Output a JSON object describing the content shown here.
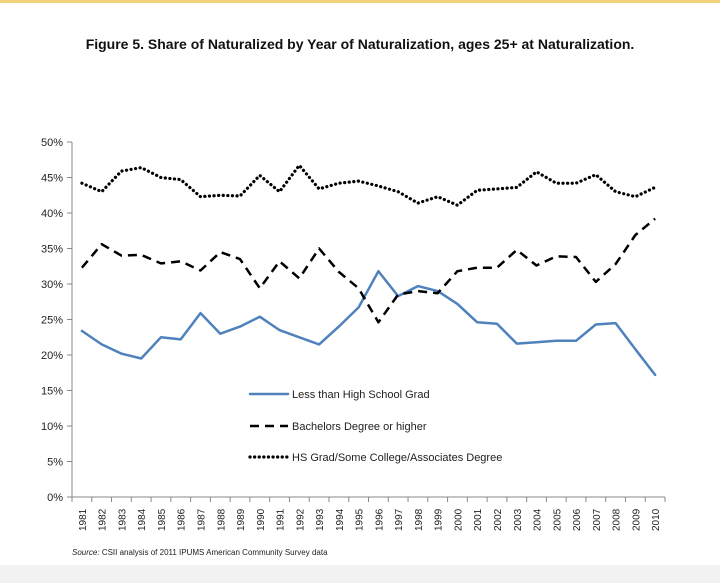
{
  "colors": {
    "less_hs": "#4f81bd",
    "bachelors": "#000000",
    "hs_grad": "#000000",
    "axis": "#888888"
  },
  "chart_data": {
    "type": "line",
    "title": "Figure 5. Share of Naturalized by Year of Naturalization, ages 25+ at Naturalization.",
    "xlabel": "",
    "ylabel": "",
    "ylim": [
      0,
      50
    ],
    "y_ticks": [
      "0%",
      "5%",
      "10%",
      "15%",
      "20%",
      "25%",
      "30%",
      "35%",
      "40%",
      "45%",
      "50%"
    ],
    "grid": false,
    "legend_placement": "center",
    "categories": [
      "1981",
      "1982",
      "1983",
      "1984",
      "1985",
      "1986",
      "1987",
      "1988",
      "1989",
      "1990",
      "1991",
      "1992",
      "1993",
      "1994",
      "1995",
      "1996",
      "1997",
      "1998",
      "1999",
      "2000",
      "2001",
      "2002",
      "2003",
      "2004",
      "2005",
      "2006",
      "2007",
      "2008",
      "2009",
      "2010"
    ],
    "series": [
      {
        "name": "Less than High School Grad",
        "style": "solid",
        "values": [
          23.4,
          21.5,
          20.2,
          19.5,
          22.5,
          22.2,
          25.9,
          23.0,
          24.0,
          25.4,
          23.5,
          22.5,
          21.5,
          24.0,
          26.7,
          31.8,
          28.3,
          29.7,
          29.0,
          27.2,
          24.6,
          24.4,
          21.6,
          21.8,
          22.0,
          22.0,
          24.3,
          24.5,
          20.8,
          17.2
        ]
      },
      {
        "name": "Bachelors Degree or higher",
        "style": "dashed",
        "values": [
          32.3,
          35.6,
          34.0,
          34.1,
          32.9,
          33.2,
          31.9,
          34.5,
          33.5,
          29.4,
          33.2,
          30.8,
          35.0,
          31.7,
          29.4,
          24.6,
          28.5,
          29.0,
          28.7,
          31.8,
          32.3,
          32.3,
          34.8,
          32.6,
          33.9,
          33.8,
          30.3,
          32.8,
          36.9,
          39.2
        ]
      },
      {
        "name": "HS Grad/Some College/Associates Degree",
        "style": "dotted",
        "values": [
          44.2,
          43.0,
          45.9,
          46.4,
          45.0,
          44.7,
          42.3,
          42.5,
          42.4,
          45.3,
          43.0,
          46.7,
          43.4,
          44.2,
          44.5,
          43.8,
          43.0,
          41.4,
          42.3,
          41.1,
          43.2,
          43.4,
          43.6,
          45.8,
          44.2,
          44.2,
          45.4,
          43.0,
          42.3,
          43.6
        ]
      }
    ],
    "source_label": "Source:",
    "source_text": "CSII analysis of 2011 IPUMS American Community Survey data"
  }
}
